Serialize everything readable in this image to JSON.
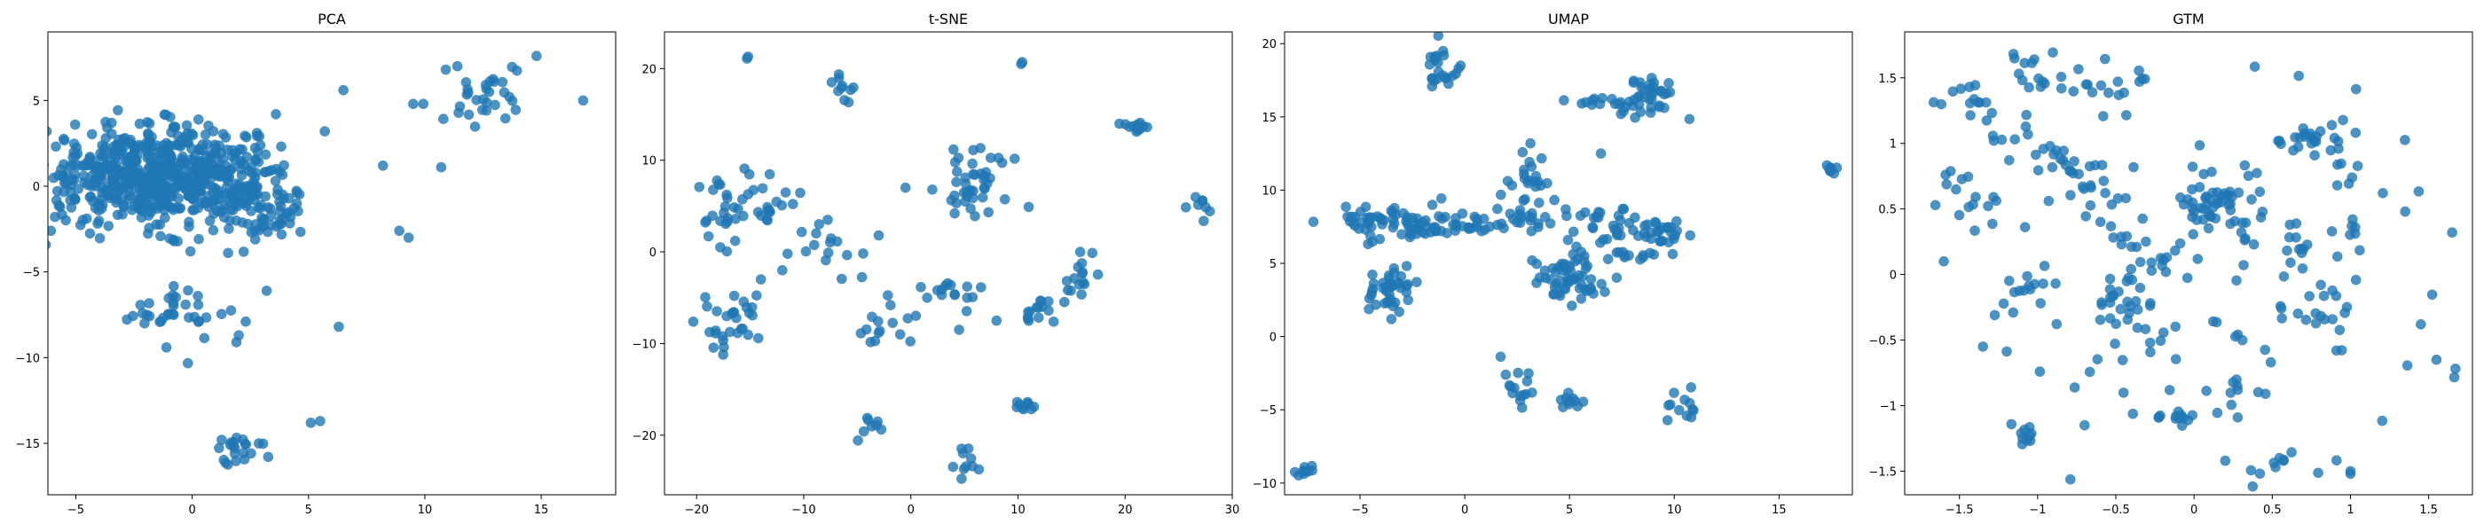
{
  "chart_data": [
    {
      "type": "scatter",
      "title": "PCA",
      "xlabel": "",
      "ylabel": "",
      "xlim": [
        -6.2,
        18.2
      ],
      "ylim": [
        -18.0,
        9.0
      ],
      "xticks": [
        -5,
        0,
        5,
        10,
        15
      ],
      "yticks": [
        -15,
        -10,
        -5,
        0,
        5
      ],
      "grid": false,
      "color": "#1f77b4",
      "clusters": [
        {
          "cx": -2.0,
          "cy": 0.6,
          "sx": 2.2,
          "sy": 1.4,
          "n": 520
        },
        {
          "cx": 1.5,
          "cy": 0.3,
          "sx": 1.4,
          "sy": 1.4,
          "n": 130
        },
        {
          "cx": 3.5,
          "cy": -1.5,
          "sx": 0.8,
          "sy": 0.8,
          "n": 40
        },
        {
          "cx": -0.5,
          "cy": -7.3,
          "sx": 1.2,
          "sy": 0.9,
          "n": 35
        },
        {
          "cx": 2.1,
          "cy": -15.3,
          "sx": 0.6,
          "sy": 0.5,
          "n": 22
        },
        {
          "cx": 12.8,
          "cy": 5.2,
          "sx": 0.9,
          "sy": 0.9,
          "n": 30
        }
      ],
      "points": [
        [
          16.8,
          5.0
        ],
        [
          14.8,
          7.6
        ],
        [
          9.5,
          4.8
        ],
        [
          10.9,
          6.8
        ],
        [
          11.4,
          7.0
        ],
        [
          10.7,
          1.1
        ],
        [
          8.2,
          1.2
        ],
        [
          8.9,
          -2.6
        ],
        [
          9.3,
          -3.0
        ],
        [
          6.3,
          -8.2
        ],
        [
          5.5,
          -13.7
        ],
        [
          5.1,
          -13.8
        ],
        [
          6.5,
          5.6
        ],
        [
          5.7,
          3.2
        ],
        [
          3.6,
          4.2
        ],
        [
          3.2,
          -6.1
        ],
        [
          2.3,
          -7.9
        ],
        [
          2.0,
          -8.7
        ],
        [
          1.9,
          -9.1
        ],
        [
          3.9,
          -0.5
        ],
        [
          4.5,
          -0.4
        ]
      ]
    },
    {
      "type": "scatter",
      "title": "t-SNE",
      "xlabel": "",
      "ylabel": "",
      "xlim": [
        -23.0,
        30.0
      ],
      "ylim": [
        -26.5,
        24.0
      ],
      "xticks": [
        -20,
        -10,
        0,
        10,
        20,
        30
      ],
      "yticks": [
        -20,
        -10,
        0,
        10,
        20
      ],
      "grid": false,
      "color": "#1f77b4",
      "clusters": [
        {
          "cx": -17.5,
          "cy": 5.0,
          "sx": 1.0,
          "sy": 2.5,
          "n": 25
        },
        {
          "cx": -16.5,
          "cy": -7.5,
          "sx": 1.6,
          "sy": 1.6,
          "n": 30
        },
        {
          "cx": -13.0,
          "cy": 5.5,
          "sx": 1.2,
          "sy": 1.3,
          "n": 20
        },
        {
          "cx": -8.0,
          "cy": 0.5,
          "sx": 1.5,
          "sy": 1.5,
          "n": 15
        },
        {
          "cx": -6.5,
          "cy": 18.0,
          "sx": 0.8,
          "sy": 1.0,
          "n": 10
        },
        {
          "cx": -3.0,
          "cy": -7.5,
          "sx": 1.5,
          "sy": 1.5,
          "n": 15
        },
        {
          "cx": 6.0,
          "cy": 7.5,
          "sx": 1.5,
          "sy": 2.0,
          "n": 40
        },
        {
          "cx": 4.0,
          "cy": -4.5,
          "sx": 1.5,
          "sy": 1.2,
          "n": 15
        },
        {
          "cx": 12.0,
          "cy": -6.5,
          "sx": 1.2,
          "sy": 0.7,
          "n": 15
        },
        {
          "cx": 16.0,
          "cy": -2.5,
          "sx": 0.8,
          "sy": 1.2,
          "n": 15
        },
        {
          "cx": 21.0,
          "cy": 13.8,
          "sx": 0.6,
          "sy": 0.5,
          "n": 12
        },
        {
          "cx": 26.5,
          "cy": 5.5,
          "sx": 1.0,
          "sy": 0.7,
          "n": 8
        },
        {
          "cx": 10.5,
          "cy": -16.8,
          "sx": 0.6,
          "sy": 0.5,
          "n": 10
        },
        {
          "cx": 5.0,
          "cy": -23.0,
          "sx": 0.7,
          "sy": 0.9,
          "n": 10
        },
        {
          "cx": -4.0,
          "cy": -19.0,
          "sx": 0.8,
          "sy": 0.8,
          "n": 8
        }
      ],
      "points": [
        [
          -15.2,
          21.3
        ],
        [
          -15.3,
          21.1
        ],
        [
          10.3,
          20.5
        ],
        [
          10.4,
          20.7
        ],
        [
          -0.5,
          7.0
        ],
        [
          2.0,
          6.8
        ],
        [
          -3.0,
          1.8
        ],
        [
          -1.0,
          -9.0
        ],
        [
          4.5,
          -8.5
        ],
        [
          8.0,
          -7.5
        ],
        [
          11.0,
          4.9
        ],
        [
          -12.0,
          -2.0
        ],
        [
          -14.0,
          -3.0
        ]
      ]
    },
    {
      "type": "scatter",
      "title": "UMAP",
      "xlabel": "",
      "ylabel": "",
      "xlim": [
        -8.6,
        18.5
      ],
      "ylim": [
        -10.8,
        20.8
      ],
      "xticks": [
        -5,
        0,
        5,
        10,
        15
      ],
      "yticks": [
        -10,
        -5,
        0,
        5,
        10,
        15,
        20
      ],
      "grid": false,
      "color": "#1f77b4",
      "clusters": [
        {
          "cx": -4.0,
          "cy": 7.8,
          "sx": 1.2,
          "sy": 0.7,
          "n": 45
        },
        {
          "cx": -3.5,
          "cy": 3.3,
          "sx": 0.7,
          "sy": 0.8,
          "n": 40
        },
        {
          "cx": -1.5,
          "cy": 7.5,
          "sx": 1.0,
          "sy": 0.5,
          "n": 25
        },
        {
          "cx": 0.0,
          "cy": 7.8,
          "sx": 0.5,
          "sy": 0.4,
          "n": 15
        },
        {
          "cx": 3.0,
          "cy": 10.5,
          "sx": 0.6,
          "sy": 1.2,
          "n": 25
        },
        {
          "cx": 2.5,
          "cy": 8.0,
          "sx": 1.0,
          "sy": 0.5,
          "n": 20
        },
        {
          "cx": 5.0,
          "cy": 4.0,
          "sx": 0.8,
          "sy": 0.8,
          "n": 55
        },
        {
          "cx": 7.0,
          "cy": 7.5,
          "sx": 1.2,
          "sy": 0.7,
          "n": 30
        },
        {
          "cx": 7.5,
          "cy": 15.8,
          "sx": 1.0,
          "sy": 0.4,
          "n": 25
        },
        {
          "cx": 9.0,
          "cy": 16.8,
          "sx": 0.6,
          "sy": 0.5,
          "n": 25
        },
        {
          "cx": 9.5,
          "cy": 7.0,
          "sx": 0.7,
          "sy": 0.5,
          "n": 25
        },
        {
          "cx": 7.8,
          "cy": 5.5,
          "sx": 1.0,
          "sy": 0.4,
          "n": 15
        },
        {
          "cx": -1.2,
          "cy": 18.0,
          "sx": 0.4,
          "sy": 0.8,
          "n": 20
        },
        {
          "cx": 2.5,
          "cy": -3.8,
          "sx": 0.4,
          "sy": 0.9,
          "n": 15
        },
        {
          "cx": 5.0,
          "cy": -4.3,
          "sx": 0.3,
          "sy": 0.4,
          "n": 10
        },
        {
          "cx": 10.5,
          "cy": -4.8,
          "sx": 0.5,
          "sy": 0.5,
          "n": 12
        },
        {
          "cx": -7.7,
          "cy": -9.2,
          "sx": 0.3,
          "sy": 0.2,
          "n": 10
        },
        {
          "cx": 17.5,
          "cy": 11.4,
          "sx": 0.15,
          "sy": 0.15,
          "n": 8
        }
      ],
      "points": [
        [
          -0.2,
          18.5
        ],
        [
          -0.3,
          18.3
        ],
        [
          -1.0,
          19.2
        ],
        [
          1.2,
          7.5
        ],
        [
          0.8,
          7.2
        ],
        [
          6.5,
          12.5
        ]
      ]
    },
    {
      "type": "scatter",
      "title": "GTM",
      "xlabel": "",
      "ylabel": "",
      "xlim": [
        -1.85,
        1.78
      ],
      "ylim": [
        -1.68,
        1.85
      ],
      "xticks": [
        -1.5,
        -1.0,
        -0.5,
        0.0,
        0.5,
        1.0,
        1.5
      ],
      "yticks": [
        -1.5,
        -1.0,
        -0.5,
        0.0,
        0.5,
        1.0,
        1.5
      ],
      "grid": false,
      "color": "#1f77b4",
      "clusters": [
        {
          "cx": -1.45,
          "cy": 1.35,
          "sx": 0.08,
          "sy": 0.08,
          "n": 12
        },
        {
          "cx": -1.0,
          "cy": 1.55,
          "sx": 0.1,
          "sy": 0.1,
          "n": 15
        },
        {
          "cx": -0.75,
          "cy": 0.75,
          "sx": 0.15,
          "sy": 0.12,
          "n": 25
        },
        {
          "cx": -0.55,
          "cy": 1.45,
          "sx": 0.12,
          "sy": 0.1,
          "n": 15
        },
        {
          "cx": -0.3,
          "cy": 0.2,
          "sx": 0.12,
          "sy": 0.15,
          "n": 20
        },
        {
          "cx": -0.4,
          "cy": -0.25,
          "sx": 0.1,
          "sy": 0.15,
          "n": 25
        },
        {
          "cx": 0.05,
          "cy": 0.55,
          "sx": 0.12,
          "sy": 0.12,
          "n": 30
        },
        {
          "cx": 0.25,
          "cy": 0.5,
          "sx": 0.1,
          "sy": 0.15,
          "n": 20
        },
        {
          "cx": 0.8,
          "cy": 1.05,
          "sx": 0.12,
          "sy": 0.06,
          "n": 20
        },
        {
          "cx": 0.7,
          "cy": 0.2,
          "sx": 0.2,
          "sy": 0.1,
          "n": 15
        },
        {
          "cx": 0.85,
          "cy": -0.2,
          "sx": 0.1,
          "sy": 0.15,
          "n": 15
        },
        {
          "cx": -1.1,
          "cy": -0.1,
          "sx": 0.08,
          "sy": 0.06,
          "n": 12
        },
        {
          "cx": -1.1,
          "cy": -1.2,
          "sx": 0.05,
          "sy": 0.08,
          "n": 10
        },
        {
          "cx": -0.2,
          "cy": -1.08,
          "sx": 0.2,
          "sy": 0.02,
          "n": 12
        },
        {
          "cx": 0.5,
          "cy": -1.5,
          "sx": 0.06,
          "sy": 0.07,
          "n": 8
        },
        {
          "cx": 1.0,
          "cy": 0.4,
          "sx": 0.05,
          "sy": 0.25,
          "n": 12
        },
        {
          "cx": 0.35,
          "cy": -0.75,
          "sx": 0.1,
          "sy": 0.15,
          "n": 12
        },
        {
          "cx": -1.55,
          "cy": 0.65,
          "sx": 0.1,
          "sy": 0.15,
          "n": 12
        },
        {
          "cx": 0.0,
          "cy": 0.0,
          "sx": 0.9,
          "sy": 0.8,
          "n": 90
        },
        {
          "cx": -1.15,
          "cy": 1.05,
          "sx": 0.15,
          "sy": 0.12,
          "n": 12
        }
      ],
      "points": [
        [
          1.65,
          0.32
        ],
        [
          1.55,
          -0.65
        ],
        [
          1.45,
          -0.38
        ],
        [
          1.35,
          0.48
        ],
        [
          -1.35,
          -0.55
        ],
        [
          -0.7,
          -1.15
        ],
        [
          -1.6,
          0.1
        ],
        [
          1.0,
          -1.52
        ],
        [
          1.0,
          -1.5
        ],
        [
          0.2,
          -1.42
        ]
      ]
    }
  ]
}
